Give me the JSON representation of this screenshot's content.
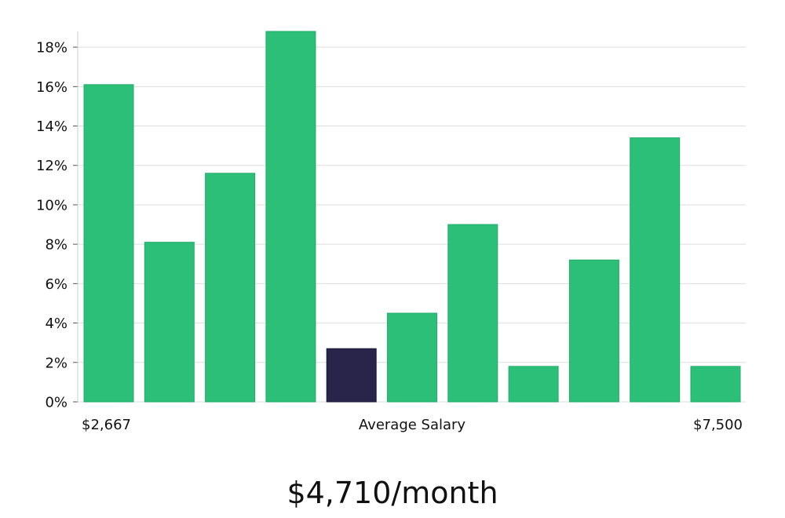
{
  "chart_data": {
    "type": "bar",
    "title": "",
    "xlabel": "Average Salary",
    "ylabel": "",
    "x_range_labels": {
      "min": "$2,667",
      "max": "$7,500"
    },
    "ylim": [
      0,
      19
    ],
    "yticks": [
      0,
      2,
      4,
      6,
      8,
      10,
      12,
      14,
      16,
      18
    ],
    "ytick_suffix": "%",
    "values": [
      16.1,
      8.1,
      11.6,
      18.8,
      2.7,
      4.5,
      9.0,
      1.8,
      7.2,
      13.4,
      1.8
    ],
    "highlight_index": 4,
    "grid": true,
    "colors": {
      "bar": "#2bbf78",
      "bar_stroke": "#22ad69",
      "highlight": "#28244a",
      "grid": "#dddddd",
      "axis": "#cccccc"
    }
  },
  "summary": {
    "salary": "$4,710/month"
  }
}
